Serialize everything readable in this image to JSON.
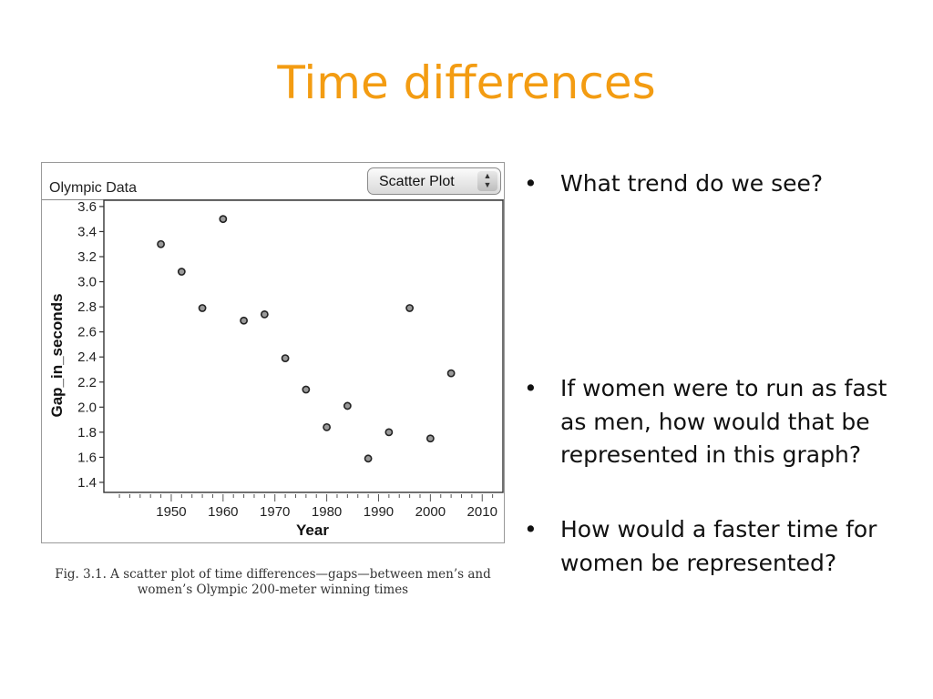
{
  "slide": {
    "title": "Time differences",
    "caption": "Fig. 3.1. A scatter plot of time differences—gaps—between men’s and women’s Olympic 200-meter winning times",
    "bullets": [
      "What trend do we see?",
      "If women were to run as fast as men, how would that be represented in this graph?",
      "How would a faster time for women be represented?"
    ],
    "bullet_symbol": "•",
    "title_color": "#f39c12"
  },
  "panel": {
    "title": "Olympic Data",
    "select_value": "Scatter Plot"
  },
  "chart_data": {
    "type": "scatter",
    "title": "Olympic Data",
    "xlabel": "Year",
    "ylabel": "Gap_in_seconds",
    "xlim": [
      1937,
      2014
    ],
    "ylim": [
      1.32,
      3.65
    ],
    "xticks": [
      1950,
      1960,
      1970,
      1980,
      1990,
      2000,
      2010
    ],
    "yticks": [
      1.4,
      1.6,
      1.8,
      2.0,
      2.2,
      2.4,
      2.6,
      2.8,
      3.0,
      3.2,
      3.4,
      3.6
    ],
    "grid": false,
    "series": [
      {
        "points": [
          {
            "x": 1948,
            "y": 3.3
          },
          {
            "x": 1952,
            "y": 3.08
          },
          {
            "x": 1956,
            "y": 2.79
          },
          {
            "x": 1960,
            "y": 3.5
          },
          {
            "x": 1964,
            "y": 2.69
          },
          {
            "x": 1968,
            "y": 2.74
          },
          {
            "x": 1972,
            "y": 2.39
          },
          {
            "x": 1976,
            "y": 2.14
          },
          {
            "x": 1980,
            "y": 1.84
          },
          {
            "x": 1984,
            "y": 2.01
          },
          {
            "x": 1988,
            "y": 1.59
          },
          {
            "x": 1992,
            "y": 1.8
          },
          {
            "x": 1996,
            "y": 2.79
          },
          {
            "x": 2000,
            "y": 1.75
          },
          {
            "x": 2004,
            "y": 2.27
          }
        ]
      }
    ]
  }
}
